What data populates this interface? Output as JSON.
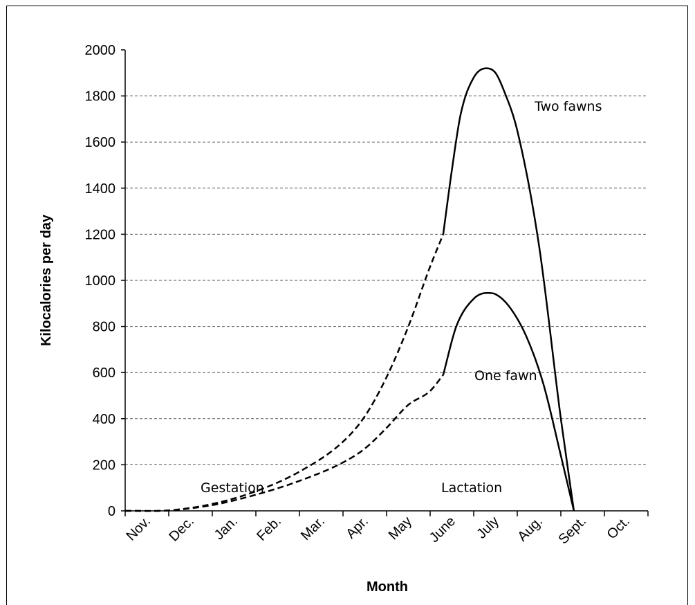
{
  "chart_data": {
    "type": "line",
    "title": "",
    "xlabel": "Month",
    "ylabel": "Kilocalories per day",
    "ylim": [
      0,
      2000
    ],
    "yticks": [
      0,
      200,
      400,
      600,
      800,
      1000,
      1200,
      1400,
      1600,
      1800,
      2000
    ],
    "categories": [
      "Nov.",
      "Dec.",
      "Jan.",
      "Feb.",
      "Mar.",
      "Apr.",
      "May",
      "June",
      "July",
      "Aug.",
      "Sept.",
      "Oct."
    ],
    "grid": "horizontal dashed",
    "line_color": "#000000",
    "annotations": {
      "two_fawns": "Two fawns",
      "one_fawn": "One fawn",
      "gestation": "Gestation",
      "lactation": "Lactation"
    },
    "series": [
      {
        "name": "Two fawns",
        "segments": [
          {
            "phase": "Gestation",
            "style": "dashed",
            "x": [
              0,
              1,
              2,
              3,
              4,
              5,
              5.5,
              6,
              6.5,
              7,
              7.3
            ],
            "y": [
              0,
              2,
              30,
              85,
              170,
              300,
              410,
              580,
              800,
              1060,
              1200
            ]
          },
          {
            "phase": "Lactation",
            "style": "solid",
            "x": [
              7.3,
              7.5,
              7.7,
              8.0,
              8.3,
              8.5,
              8.7,
              9.0,
              9.5,
              10.0,
              10.3
            ],
            "y": [
              1200,
              1480,
              1720,
              1880,
              1920,
              1900,
              1820,
              1650,
              1150,
              400,
              0
            ]
          }
        ]
      },
      {
        "name": "One fawn",
        "segments": [
          {
            "phase": "Gestation",
            "style": "dashed",
            "x": [
              0,
              1,
              2,
              3,
              4,
              5,
              5.5,
              6,
              6.5,
              7,
              7.3
            ],
            "y": [
              0,
              2,
              25,
              70,
              130,
              210,
              270,
              360,
              460,
              520,
              590
            ]
          },
          {
            "phase": "Lactation",
            "style": "solid",
            "x": [
              7.3,
              7.6,
              8.0,
              8.3,
              8.5,
              8.8,
              9.2,
              9.6,
              10.0,
              10.3
            ],
            "y": [
              590,
              800,
              920,
              945,
              940,
              890,
              760,
              550,
              240,
              0
            ]
          }
        ]
      }
    ]
  }
}
